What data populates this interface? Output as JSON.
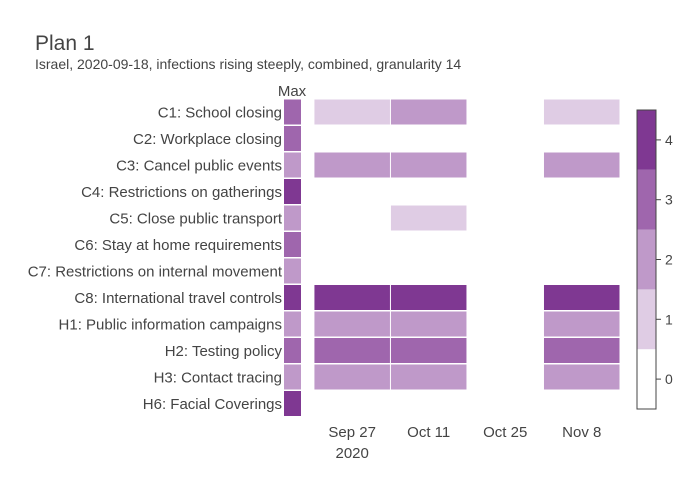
{
  "chart_data": {
    "type": "heatmap",
    "title": "Plan 1",
    "subtitle": "Israel, 2020-09-18, infections rising steeply, combined, granularity 14",
    "max_column_label": "Max",
    "rows": [
      {
        "label": "C1: School closing",
        "max": 3,
        "values": [
          1,
          2,
          null,
          1
        ]
      },
      {
        "label": "C2: Workplace closing",
        "max": 3,
        "values": [
          null,
          null,
          null,
          null
        ]
      },
      {
        "label": "C3: Cancel public events",
        "max": 2,
        "values": [
          2,
          2,
          null,
          2
        ]
      },
      {
        "label": "C4: Restrictions on gatherings",
        "max": 4,
        "values": [
          null,
          null,
          null,
          null
        ]
      },
      {
        "label": "C5: Close public transport",
        "max": 2,
        "values": [
          null,
          1,
          null,
          null
        ]
      },
      {
        "label": "C6: Stay at home requirements",
        "max": 3,
        "values": [
          null,
          null,
          null,
          null
        ]
      },
      {
        "label": "C7: Restrictions on internal movement",
        "max": 2,
        "values": [
          null,
          null,
          null,
          null
        ]
      },
      {
        "label": "C8: International travel controls",
        "max": 4,
        "values": [
          4,
          4,
          null,
          4
        ]
      },
      {
        "label": "H1: Public information campaigns",
        "max": 2,
        "values": [
          2,
          2,
          null,
          2
        ]
      },
      {
        "label": "H2: Testing policy",
        "max": 3,
        "values": [
          3,
          3,
          null,
          3
        ]
      },
      {
        "label": "H3: Contact tracing",
        "max": 2,
        "values": [
          2,
          2,
          null,
          2
        ]
      },
      {
        "label": "H6: Facial Coverings",
        "max": 4,
        "values": [
          null,
          null,
          null,
          null
        ]
      }
    ],
    "period_starts": [
      "2020-09-20",
      "2020-10-04",
      "2020-10-18",
      "2020-11-01"
    ],
    "period_days": 14,
    "x_range": [
      "2020-09-18",
      "2020-11-15"
    ],
    "x_ticks": [
      {
        "date": "2020-09-27",
        "label": "Sep 27",
        "sublabel": "2020"
      },
      {
        "date": "2020-10-11",
        "label": "Oct 11",
        "sublabel": ""
      },
      {
        "date": "2020-10-25",
        "label": "Oct 25",
        "sublabel": ""
      },
      {
        "date": "2020-11-08",
        "label": "Nov 8",
        "sublabel": ""
      }
    ],
    "colorbar": {
      "min": 0,
      "max": 4,
      "ticks": [
        0,
        1,
        2,
        3,
        4
      ]
    },
    "colors": [
      "#ffffff",
      "#dfcce4",
      "#bf99c9",
      "#9f66ad",
      "#7f3892"
    ]
  }
}
